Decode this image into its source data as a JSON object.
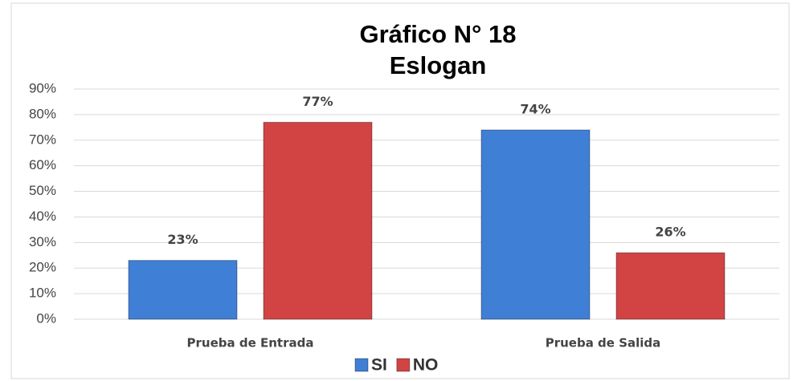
{
  "chart_data": {
    "type": "bar",
    "title": "Gráfico N° 18",
    "subtitle": "Eslogan",
    "categories": [
      "Prueba de Entrada",
      "Prueba de Salida"
    ],
    "series": [
      {
        "name": "SI",
        "color": "#3f7fd6",
        "values": [
          23,
          74
        ],
        "value_labels": [
          "23%",
          "74%"
        ]
      },
      {
        "name": "NO",
        "color": "#d24343",
        "values": [
          77,
          26
        ],
        "value_labels": [
          "77%",
          "26%"
        ]
      }
    ],
    "ylim": [
      0,
      90
    ],
    "yticks": [
      {
        "value": 0,
        "label": "0%"
      },
      {
        "value": 10,
        "label": "10%"
      },
      {
        "value": 20,
        "label": "20%"
      },
      {
        "value": 30,
        "label": "30%"
      },
      {
        "value": 40,
        "label": "40%"
      },
      {
        "value": 50,
        "label": "50%"
      },
      {
        "value": 60,
        "label": "60%"
      },
      {
        "value": 70,
        "label": "70%"
      },
      {
        "value": 80,
        "label": "80%"
      },
      {
        "value": 90,
        "label": "90%"
      }
    ],
    "grid": true,
    "legend": "bottom"
  }
}
